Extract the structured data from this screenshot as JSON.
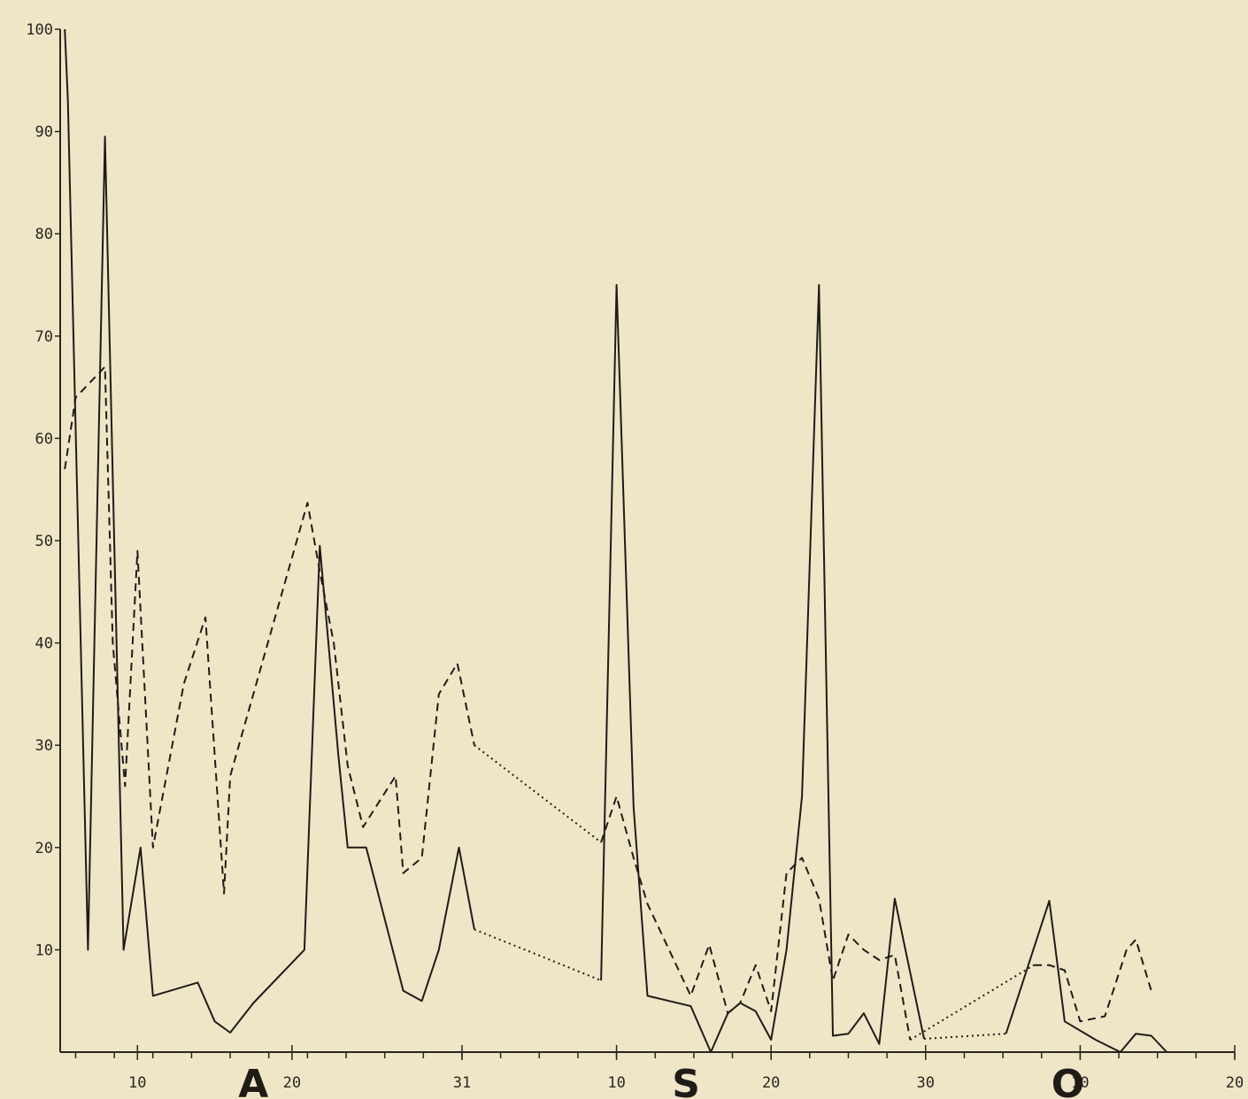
{
  "chart_data": {
    "type": "line",
    "title": "",
    "xlabel": "",
    "ylabel": "",
    "ylim": [
      0,
      100
    ],
    "xlim": [
      5,
      81
    ],
    "grid": false,
    "legend": "none",
    "y_ticks": [
      {
        "value": 10,
        "label": "10"
      },
      {
        "value": 20,
        "label": "20"
      },
      {
        "value": 30,
        "label": "30"
      },
      {
        "value": 40,
        "label": "40"
      },
      {
        "value": 50,
        "label": "50"
      },
      {
        "value": 60,
        "label": "60"
      },
      {
        "value": 70,
        "label": "70"
      },
      {
        "value": 80,
        "label": "80"
      },
      {
        "value": 90,
        "label": "90"
      },
      {
        "value": 100,
        "label": "100"
      }
    ],
    "x_tick_labels": [
      {
        "x": 10,
        "label": "10"
      },
      {
        "x": 20,
        "label": "20"
      },
      {
        "x": 31,
        "label": "31"
      },
      {
        "x": 41,
        "label": "10"
      },
      {
        "x": 51,
        "label": "20"
      },
      {
        "x": 61,
        "label": "30"
      },
      {
        "x": 71,
        "label": "10"
      },
      {
        "x": 81,
        "label": "20"
      }
    ],
    "month_labels": [
      {
        "x": 17.5,
        "label": "A"
      },
      {
        "x": 45.5,
        "label": "S"
      },
      {
        "x": 70.2,
        "label": "O"
      }
    ],
    "series": [
      {
        "style": "solid",
        "segments": [
          [
            [
              5.3,
              100
            ],
            [
              5.5,
              93
            ],
            [
              6.8,
              10
            ],
            [
              7.9,
              89.5
            ],
            [
              9.1,
              10
            ],
            [
              10.2,
              20
            ],
            [
              11,
              5.5
            ],
            [
              13.9,
              6.8
            ],
            [
              15,
              3
            ],
            [
              16,
              1.9
            ],
            [
              17.5,
              4.8
            ],
            [
              20.8,
              10
            ],
            [
              21.8,
              49.5
            ],
            [
              23,
              29
            ],
            [
              23.6,
              20
            ],
            [
              24.8,
              20
            ],
            [
              26,
              13
            ],
            [
              27.2,
              6
            ],
            [
              28.4,
              5
            ],
            [
              29.5,
              10
            ],
            [
              30.8,
              20
            ],
            [
              31.8,
              12
            ]
          ],
          [
            [
              40,
              7
            ],
            [
              41,
              75
            ],
            [
              42.1,
              24
            ],
            [
              43,
              5.5
            ],
            [
              45.8,
              4.5
            ],
            [
              47.1,
              0
            ],
            [
              48.2,
              3.8
            ],
            [
              49,
              4.8
            ],
            [
              50,
              4
            ],
            [
              51,
              1.2
            ],
            [
              52,
              10
            ],
            [
              53,
              25
            ],
            [
              54.1,
              75
            ],
            [
              55,
              1.6
            ],
            [
              56,
              1.8
            ],
            [
              57,
              3.8
            ],
            [
              58,
              0.8
            ],
            [
              59,
              15
            ],
            [
              60.9,
              1.3
            ]
          ],
          [
            [
              66.2,
              1.8
            ],
            [
              69,
              14.8
            ],
            [
              70,
              3
            ],
            [
              72,
              1.2
            ],
            [
              73.6,
              0
            ],
            [
              74.6,
              1.8
            ],
            [
              75.6,
              1.6
            ],
            [
              76.6,
              0
            ]
          ]
        ],
        "dotted_links": [
          [
            [
              31.8,
              12
            ],
            [
              40,
              7
            ]
          ],
          [
            [
              60.9,
              1.3
            ],
            [
              66.2,
              1.8
            ]
          ]
        ]
      },
      {
        "style": "dashed",
        "segments": [
          [
            [
              5.3,
              57
            ],
            [
              6,
              64
            ],
            [
              7.9,
              67
            ],
            [
              8.4,
              40
            ],
            [
              9.2,
              26
            ],
            [
              10,
              49
            ],
            [
              11,
              20
            ],
            [
              13,
              36
            ],
            [
              14.4,
              42.5
            ],
            [
              15.6,
              15.5
            ],
            [
              16,
              27
            ],
            [
              21,
              53.7
            ],
            [
              21.8,
              47
            ],
            [
              22.7,
              40
            ],
            [
              23.6,
              28
            ],
            [
              24.6,
              22
            ],
            [
              26.7,
              27
            ],
            [
              27.2,
              17.5
            ],
            [
              28.4,
              19
            ],
            [
              29.5,
              35
            ],
            [
              30.7,
              38
            ],
            [
              31.8,
              30
            ]
          ],
          [
            [
              40,
              20.5
            ],
            [
              41,
              25
            ],
            [
              42.1,
              19
            ],
            [
              43,
              14.5
            ],
            [
              45.8,
              5.5
            ],
            [
              47,
              10.5
            ],
            [
              48.2,
              3.8
            ],
            [
              49,
              4.8
            ],
            [
              50,
              8.5
            ],
            [
              51,
              4
            ],
            [
              52,
              17.5
            ],
            [
              53,
              19
            ],
            [
              54.1,
              15
            ],
            [
              55,
              7
            ],
            [
              56,
              11.5
            ],
            [
              57,
              10
            ],
            [
              58,
              9
            ],
            [
              59,
              9.5
            ],
            [
              60,
              1.2
            ]
          ],
          [
            [
              68,
              8.5
            ],
            [
              69,
              8.5
            ],
            [
              70,
              8
            ],
            [
              71,
              3
            ],
            [
              72.6,
              3.5
            ],
            [
              74,
              10
            ],
            [
              74.6,
              11
            ],
            [
              75.6,
              6
            ]
          ]
        ],
        "dotted_links": [
          [
            [
              31.8,
              30
            ],
            [
              40,
              20.5
            ]
          ],
          [
            [
              60,
              1.2
            ],
            [
              68,
              8.5
            ]
          ]
        ]
      }
    ]
  }
}
